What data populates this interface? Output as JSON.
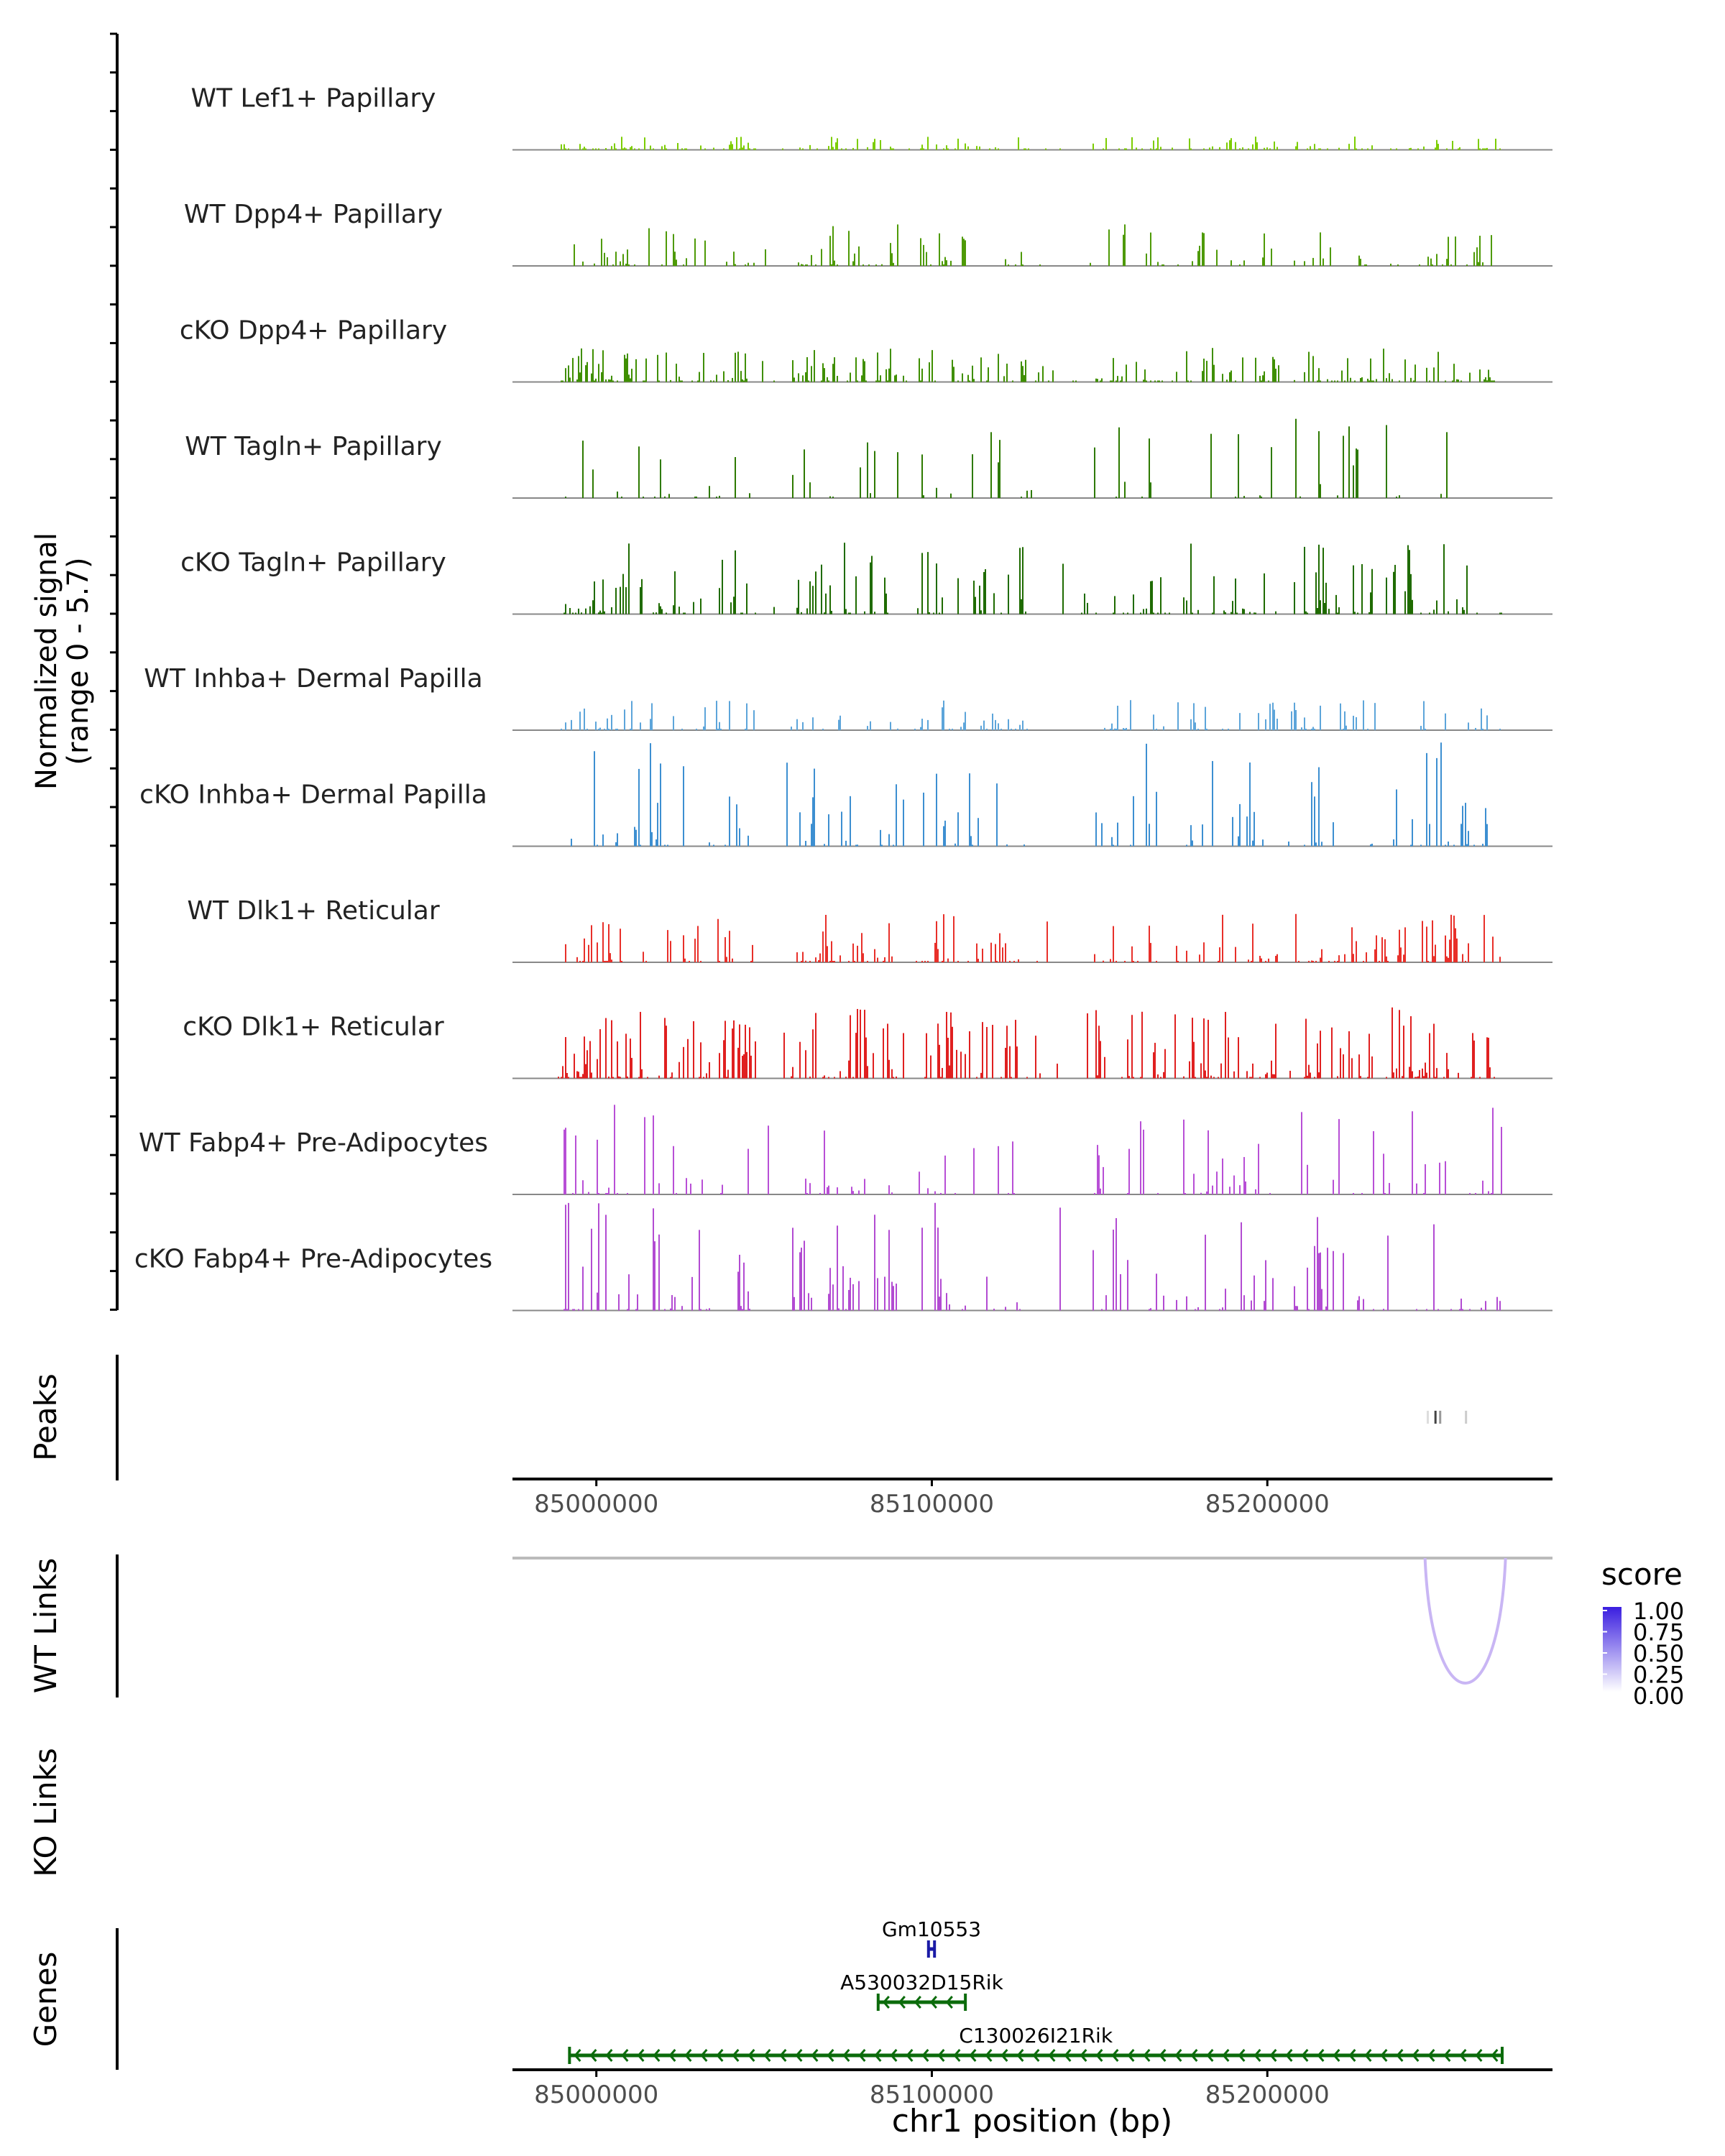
{
  "chart_data": {
    "type": "genome-browser-coverage",
    "region": {
      "chromosome": "chr1",
      "start": 84975000,
      "end": 85285000
    },
    "coverage": {
      "ylabel_line1": "Normalized signal",
      "ylabel_line2": "(range 0 - 5.7)",
      "ylim": [
        0,
        5.7
      ],
      "tracks": [
        {
          "name": "WT Lef1+ Papillary",
          "color": "#7CCD00",
          "max": 0.7,
          "density": 0.6,
          "seed": 11
        },
        {
          "name": "WT Dpp4+ Papillary",
          "color": "#4E9A06",
          "max": 2.2,
          "density": 0.35,
          "seed": 23
        },
        {
          "name": "cKO Dpp4+ Papillary",
          "color": "#3F8F00",
          "max": 1.8,
          "density": 0.7,
          "seed": 37
        },
        {
          "name": "WT Tagln+ Papillary",
          "color": "#2E7A00",
          "max": 4.5,
          "density": 0.25,
          "seed": 41
        },
        {
          "name": "cKO Tagln+ Papillary",
          "color": "#1F6B00",
          "max": 3.8,
          "density": 0.55,
          "seed": 53
        },
        {
          "name": "WT Inhba+ Dermal Papilla",
          "color": "#5DA5DA",
          "max": 1.6,
          "density": 0.35,
          "seed": 67
        },
        {
          "name": "cKO Inhba+ Dermal Papilla",
          "color": "#3D8FD1",
          "max": 5.7,
          "density": 0.35,
          "seed": 71
        },
        {
          "name": "WT Dlk1+ Reticular",
          "color": "#E8302A",
          "max": 2.6,
          "density": 0.55,
          "seed": 83
        },
        {
          "name": "cKO Dlk1+ Reticular",
          "color": "#E02020",
          "max": 3.8,
          "density": 0.7,
          "seed": 97
        },
        {
          "name": "WT Fabp4+ Pre-Adipocytes",
          "color": "#B84FD6",
          "max": 4.8,
          "density": 0.35,
          "seed": 101
        },
        {
          "name": "cKO Fabp4+ Pre-Adipocytes",
          "color": "#B24BD2",
          "max": 5.7,
          "density": 0.45,
          "seed": 113
        }
      ]
    },
    "peaks": {
      "label": "Peaks",
      "regions": [
        {
          "start": 85247500,
          "end": 85248000,
          "shade": "#dddddd"
        },
        {
          "start": 85249800,
          "end": 85250400,
          "shade": "#444444"
        },
        {
          "start": 85251200,
          "end": 85251700,
          "shade": "#999999"
        },
        {
          "start": 85258900,
          "end": 85259400,
          "shade": "#cccccc"
        }
      ]
    },
    "x_axis_ticks": [
      {
        "value": 85000000,
        "label": "85000000"
      },
      {
        "value": 85100000,
        "label": "85100000"
      },
      {
        "value": 85200000,
        "label": "85200000"
      }
    ],
    "wt_links": {
      "label": "WT Links",
      "links": [
        {
          "start": 85247000,
          "end": 85271000,
          "score": 0.25
        }
      ]
    },
    "ko_links": {
      "label": "KO Links",
      "links": []
    },
    "legend": {
      "title": "score",
      "ticks": [
        "1.00",
        "0.75",
        "0.50",
        "0.25",
        "0.00"
      ],
      "color_low": "#ffffff",
      "color_high": "#3a1ee0"
    },
    "genes": {
      "label": "Genes",
      "items": [
        {
          "name": "Gm10553",
          "start": 85099000,
          "end": 85100800,
          "strand": "+",
          "color": "#1a1aa6",
          "row": 0
        },
        {
          "name": "A530032D15Rik",
          "start": 85084000,
          "end": 85110000,
          "strand": "-",
          "color": "#0b6b0b",
          "row": 1
        },
        {
          "name": "C130026I21Rik",
          "start": 84992000,
          "end": 85270000,
          "strand": "-",
          "color": "#0b6b0b",
          "row": 2
        }
      ]
    },
    "xlabel": "chr1 position (bp)"
  }
}
